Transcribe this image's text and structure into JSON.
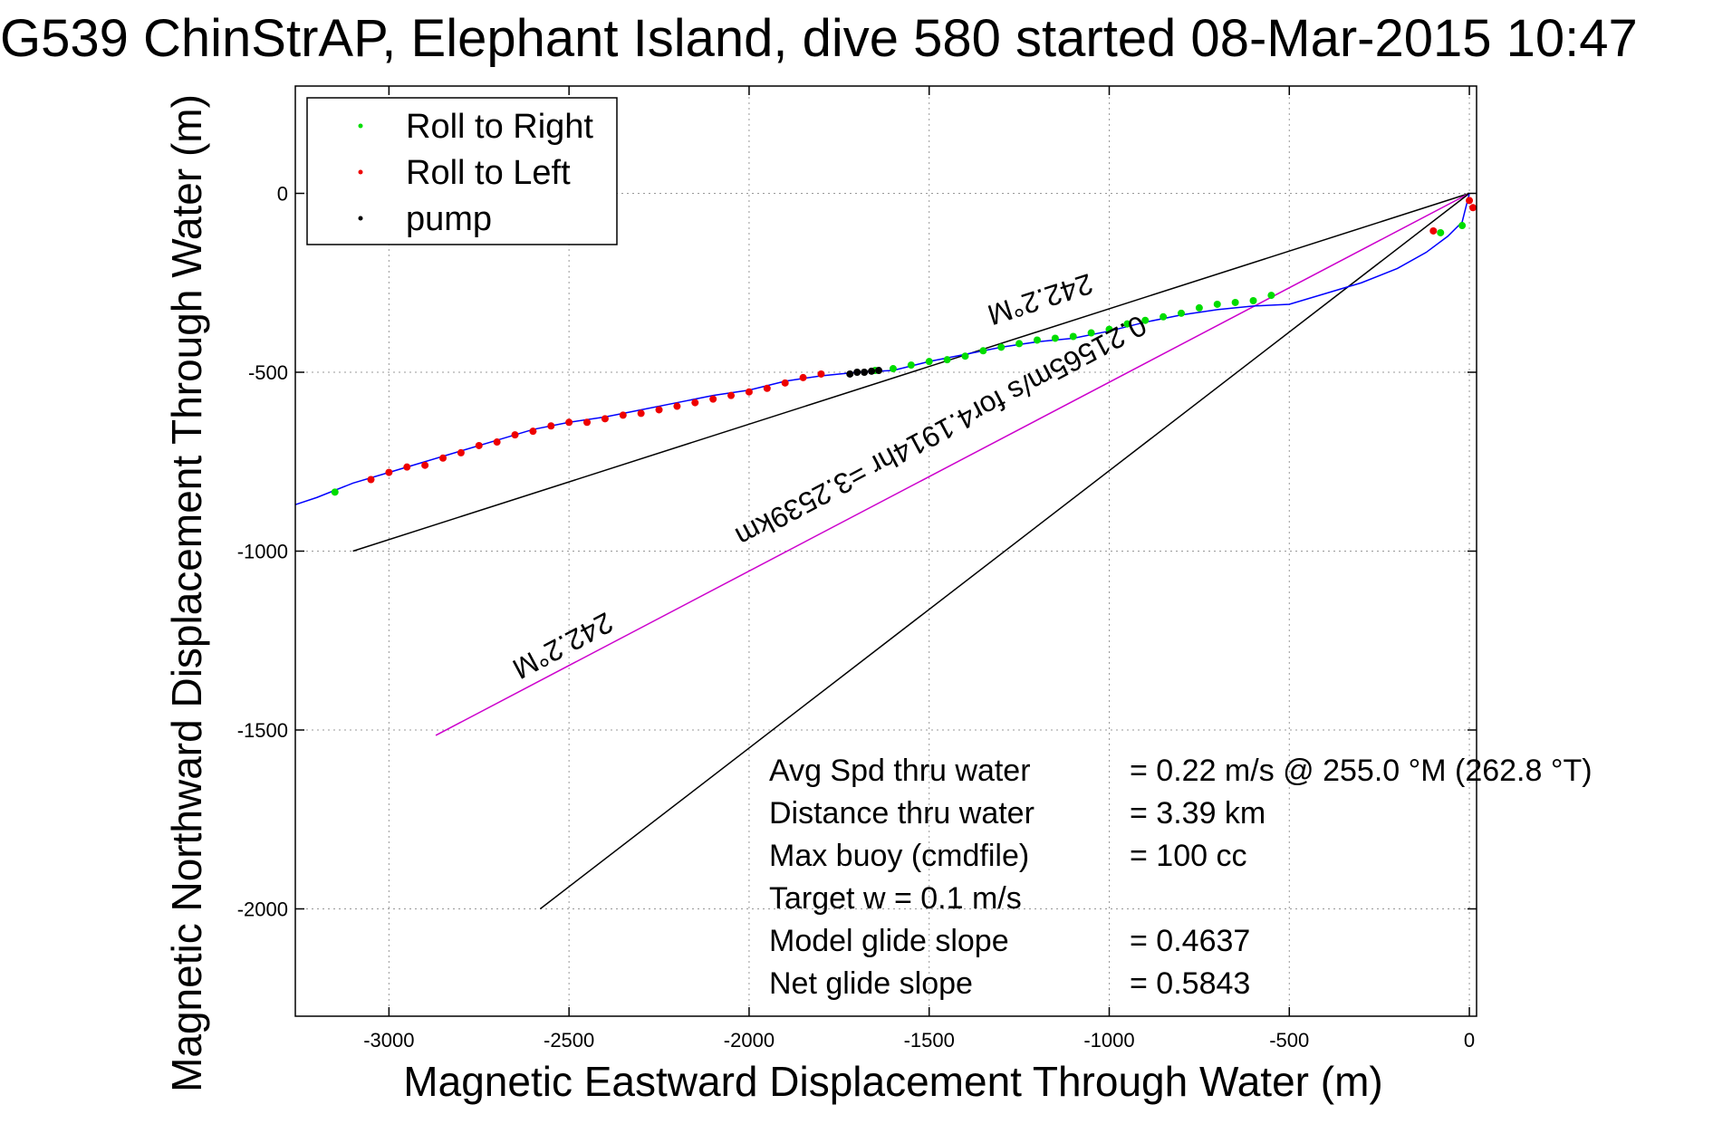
{
  "chart_data": {
    "type": "line",
    "title": "G539 ChinStrAP, Elephant Island, dive 580 started 08-Mar-2015 10:47",
    "xlabel": "Magnetic Eastward Displacement Through Water (m)",
    "ylabel": "Magnetic Northward Displacement Through Water (m)",
    "xlim": [
      -3260,
      20
    ],
    "ylim": [
      -2300,
      300
    ],
    "xticks": [
      -3000,
      -2500,
      -2000,
      -1500,
      -1000,
      -500,
      0
    ],
    "yticks": [
      0,
      -500,
      -1000,
      -1500,
      -2000
    ],
    "grid": true,
    "legend_position": "top-left",
    "legend": [
      {
        "name": "Roll to Right",
        "color": "#00dd00"
      },
      {
        "name": "Roll to Left",
        "color": "#ee0000"
      },
      {
        "name": "pump",
        "color": "#000000"
      }
    ],
    "track": {
      "name": "track",
      "color": "#0000ff",
      "x": [
        0,
        -20,
        -60,
        -120,
        -200,
        -300,
        -400,
        -500,
        -600,
        -700,
        -800,
        -900,
        -1000,
        -1100,
        -1200,
        -1300,
        -1400,
        -1500,
        -1600,
        -1700,
        -1800,
        -1900,
        -2000,
        -2100,
        -2200,
        -2300,
        -2400,
        -2500,
        -2600,
        -2700,
        -2800,
        -2900,
        -3000,
        -3100,
        -3200,
        -3260
      ],
      "y": [
        0,
        -80,
        -120,
        -165,
        -210,
        -250,
        -280,
        -310,
        -315,
        -325,
        -340,
        -360,
        -385,
        -405,
        -415,
        -430,
        -450,
        -470,
        -495,
        -500,
        -510,
        -525,
        -550,
        -565,
        -585,
        -605,
        -625,
        -640,
        -660,
        -690,
        -720,
        -750,
        -780,
        -810,
        -850,
        -870
      ]
    },
    "roll_right": {
      "x": [
        -20,
        -80,
        -550,
        -600,
        -650,
        -700,
        -750,
        -800,
        -850,
        -900,
        -950,
        -1000,
        -1050,
        -1100,
        -1150,
        -1200,
        -1250,
        -1300,
        -1350,
        -1400,
        -1450,
        -1500,
        -1550,
        -1600,
        -1650,
        -3150
      ],
      "y": [
        -90,
        -110,
        -285,
        -300,
        -305,
        -310,
        -320,
        -335,
        -345,
        -355,
        -365,
        -380,
        -390,
        -400,
        -405,
        -410,
        -420,
        -430,
        -440,
        -455,
        -465,
        -470,
        -480,
        -490,
        -495,
        -835
      ]
    },
    "roll_left": {
      "x": [
        0,
        10,
        -100,
        -1800,
        -1850,
        -1900,
        -1950,
        -2000,
        -2050,
        -2100,
        -2150,
        -2200,
        -2250,
        -2300,
        -2350,
        -2400,
        -2450,
        -2500,
        -2550,
        -2600,
        -2650,
        -2700,
        -2750,
        -2800,
        -2850,
        -2900,
        -2950,
        -3000,
        -3050
      ],
      "y": [
        -20,
        -40,
        -105,
        -505,
        -515,
        -530,
        -545,
        -555,
        -565,
        -575,
        -585,
        -595,
        -605,
        -615,
        -620,
        -630,
        -640,
        -640,
        -650,
        -665,
        -675,
        -695,
        -705,
        -725,
        -740,
        -760,
        -765,
        -780,
        -800
      ]
    },
    "pump": {
      "x": [
        -1720,
        -1700,
        -1680,
        -1660,
        -1640
      ],
      "y": [
        -505,
        -500,
        -500,
        -497,
        -495
      ]
    },
    "reference_lines": [
      {
        "name": "line-1",
        "color": "#000000",
        "x": [
          0,
          -3100
        ],
        "y": [
          0,
          -1000
        ]
      },
      {
        "name": "line-2",
        "color": "#cc00cc",
        "x": [
          0,
          -2870
        ],
        "y": [
          0,
          -1515
        ]
      },
      {
        "name": "line-3",
        "color": "#000000",
        "x": [
          0,
          -2580
        ],
        "y": [
          0,
          -2000
        ]
      }
    ],
    "rotated_annotations": [
      {
        "text": "242.2°M",
        "x": -1200,
        "y": -270,
        "angle": 162
      },
      {
        "text": "0.21565m/s for4.1914hr =3.2539km",
        "x": -1480,
        "y": -640,
        "angle": 152
      },
      {
        "text": "242.2°M",
        "x": -2530,
        "y": -1240,
        "angle": 152
      }
    ],
    "stats": [
      {
        "label": "Avg Spd thru water",
        "value": "=  0.22 m/s @ 255.0 °M (262.8 °T)"
      },
      {
        "label": "Distance thru water",
        "value": "=  3.39 km"
      },
      {
        "label": "Max buoy (cmdfile)",
        "value": "= 100 cc"
      },
      {
        "label": "Target w    = 0.1 m/s",
        "value": ""
      },
      {
        "label": "Model glide slope",
        "value": "= 0.4637"
      },
      {
        "label": "Net glide slope",
        "value": "= 0.5843"
      }
    ]
  }
}
